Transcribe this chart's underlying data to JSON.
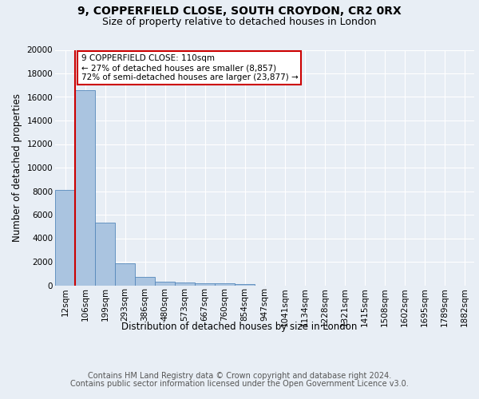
{
  "title1": "9, COPPERFIELD CLOSE, SOUTH CROYDON, CR2 0RX",
  "title2": "Size of property relative to detached houses in London",
  "xlabel": "Distribution of detached houses by size in London",
  "ylabel": "Number of detached properties",
  "bin_labels": [
    "12sqm",
    "106sqm",
    "199sqm",
    "293sqm",
    "386sqm",
    "480sqm",
    "573sqm",
    "667sqm",
    "760sqm",
    "854sqm",
    "947sqm",
    "1041sqm",
    "1134sqm",
    "1228sqm",
    "1321sqm",
    "1415sqm",
    "1508sqm",
    "1602sqm",
    "1695sqm",
    "1789sqm",
    "1882sqm"
  ],
  "bar_heights": [
    8100,
    16600,
    5300,
    1850,
    700,
    310,
    220,
    185,
    175,
    130,
    0,
    0,
    0,
    0,
    0,
    0,
    0,
    0,
    0,
    0,
    0
  ],
  "bar_color": "#aac4e0",
  "bar_edge_color": "#5588bb",
  "property_line_x": 1,
  "annotation_title": "9 COPPERFIELD CLOSE: 110sqm",
  "annotation_line1": "← 27% of detached houses are smaller (8,857)",
  "annotation_line2": "72% of semi-detached houses are larger (23,877) →",
  "annotation_box_color": "#ffffff",
  "annotation_box_edge": "#cc0000",
  "vline_color": "#cc0000",
  "ylim": [
    0,
    20000
  ],
  "yticks": [
    0,
    2000,
    4000,
    6000,
    8000,
    10000,
    12000,
    14000,
    16000,
    18000,
    20000
  ],
  "footer1": "Contains HM Land Registry data © Crown copyright and database right 2024.",
  "footer2": "Contains public sector information licensed under the Open Government Licence v3.0.",
  "bg_color": "#e8eef5",
  "plot_bg_color": "#e8eef5",
  "grid_color": "#ffffff",
  "title1_fontsize": 10,
  "title2_fontsize": 9,
  "axis_label_fontsize": 8.5,
  "tick_fontsize": 7.5,
  "footer_fontsize": 7
}
